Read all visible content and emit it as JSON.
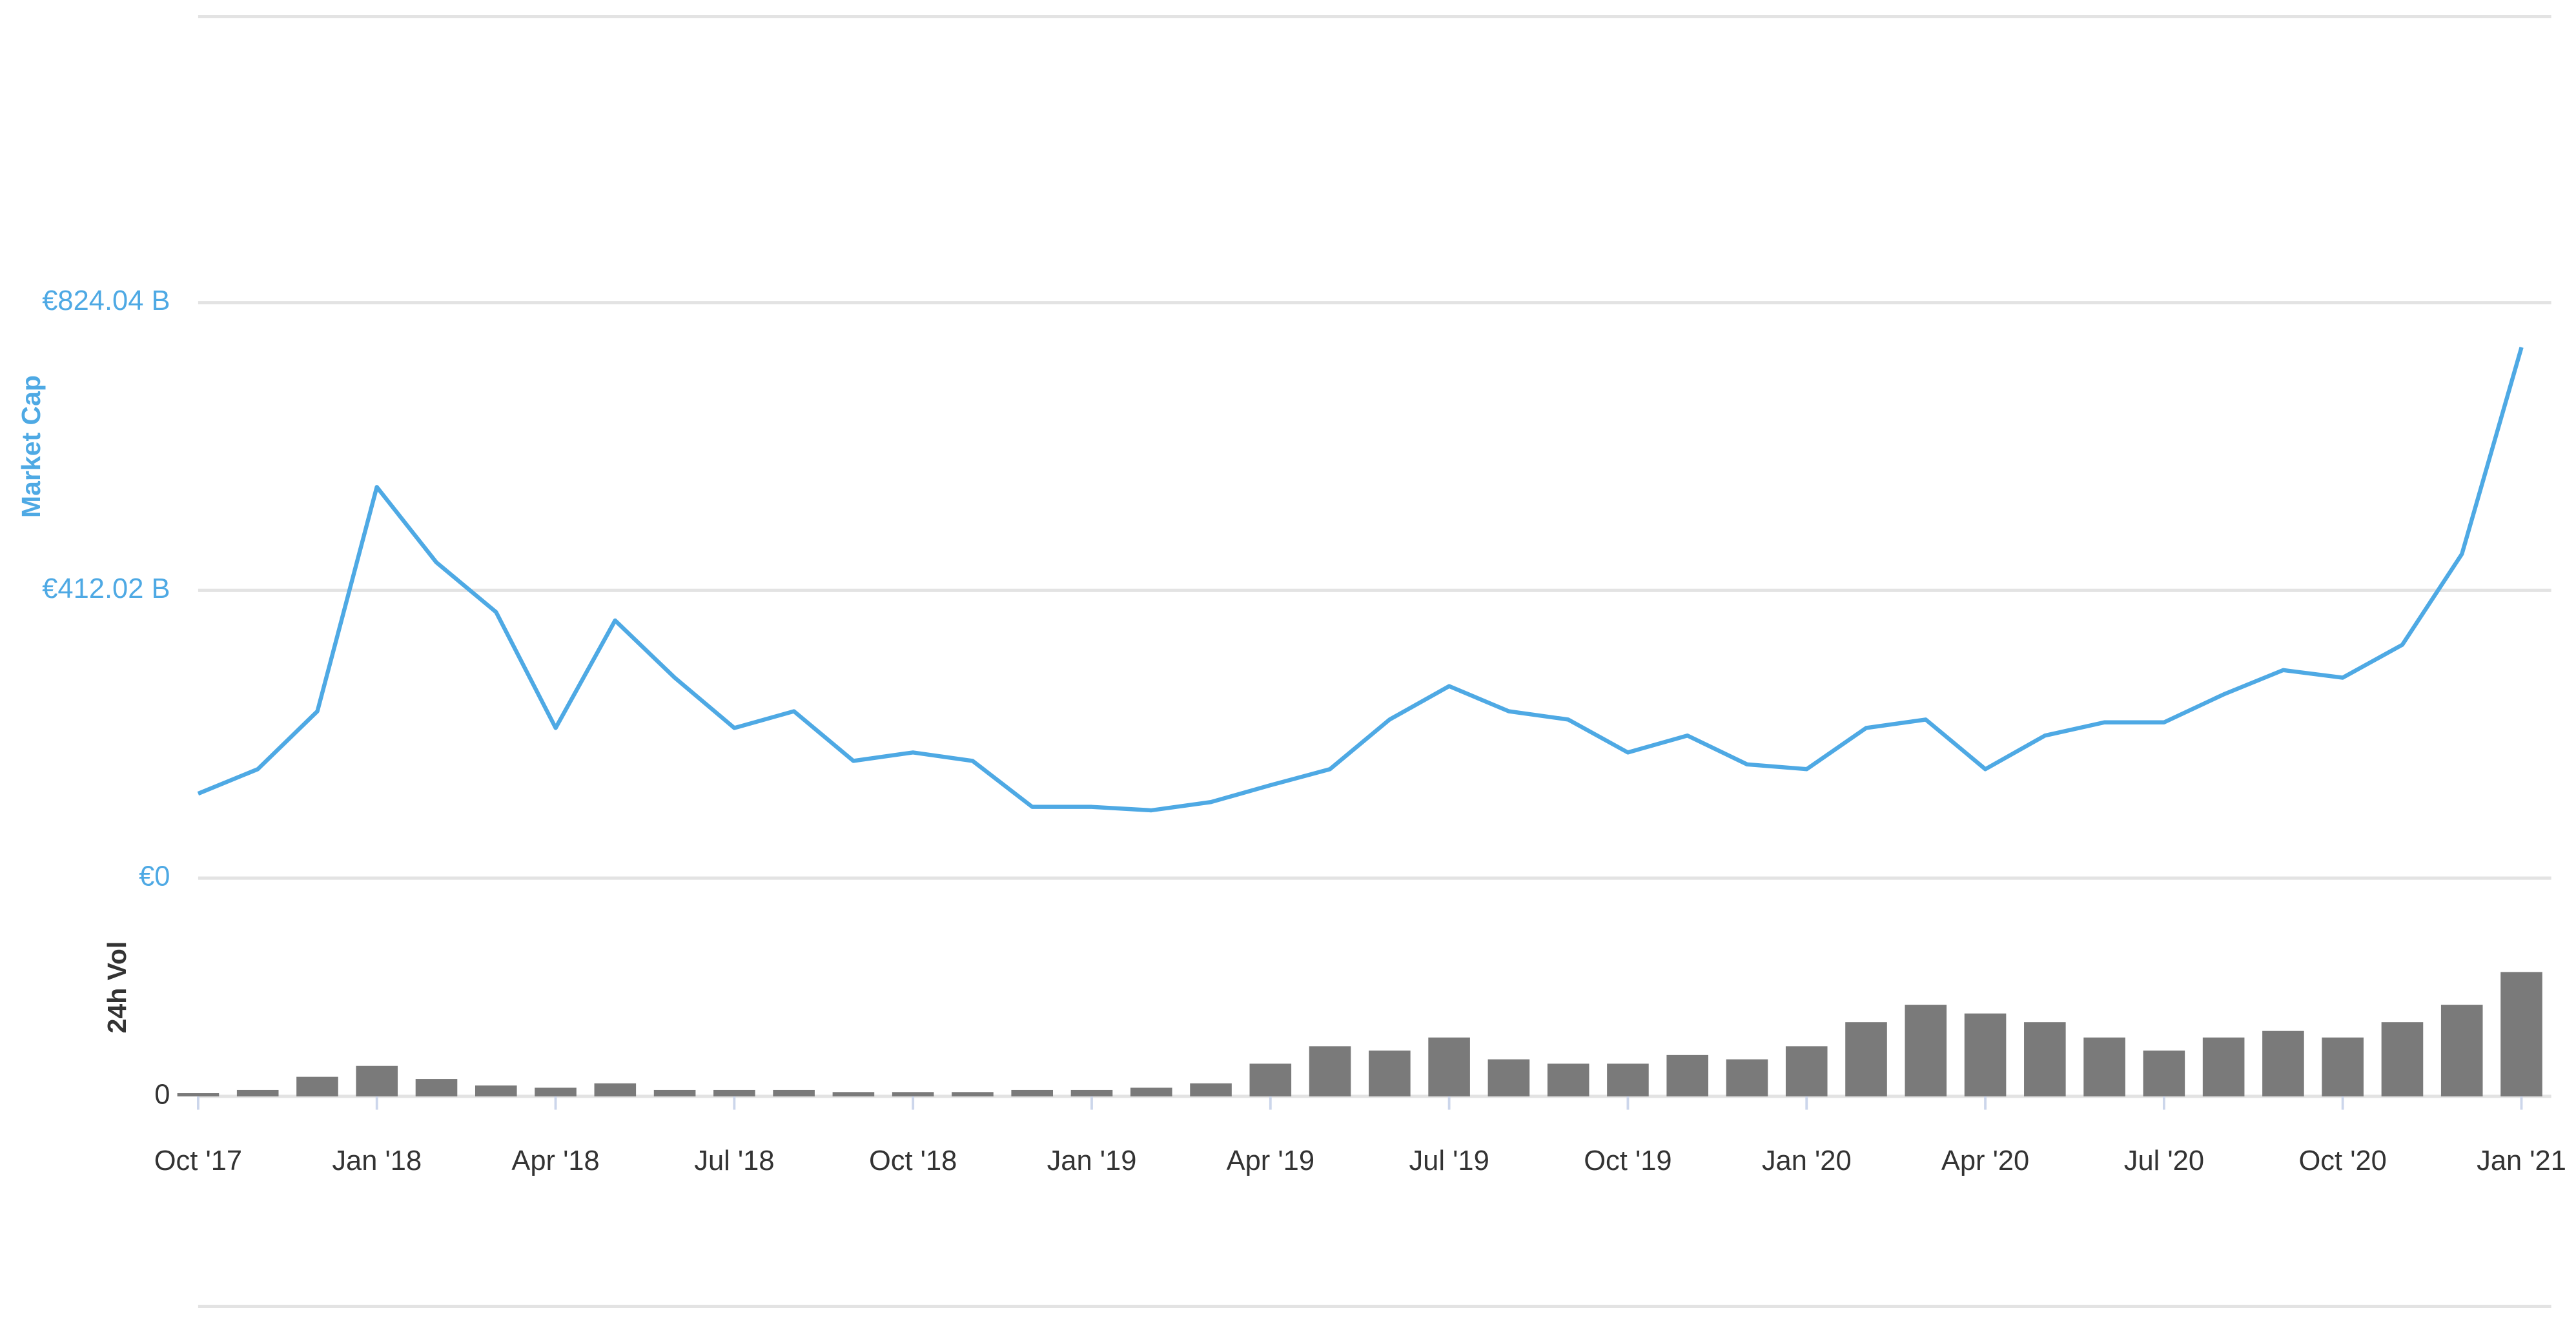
{
  "chart_data": [
    {
      "type": "line",
      "y_label": "Market Cap",
      "x": [
        "2017-10",
        "2017-11",
        "2017-12",
        "2018-01",
        "2018-02",
        "2018-03",
        "2018-04",
        "2018-05",
        "2018-06",
        "2018-07",
        "2018-08",
        "2018-09",
        "2018-10",
        "2018-11",
        "2018-12",
        "2019-01",
        "2019-02",
        "2019-03",
        "2019-04",
        "2019-05",
        "2019-06",
        "2019-07",
        "2019-08",
        "2019-09",
        "2019-10",
        "2019-11",
        "2019-12",
        "2020-01",
        "2020-02",
        "2020-03",
        "2020-04",
        "2020-05",
        "2020-06",
        "2020-07",
        "2020-08",
        "2020-09",
        "2020-10",
        "2020-11",
        "2020-12",
        "2021-01"
      ],
      "values": [
        121,
        156,
        239,
        560,
        452,
        381,
        215,
        369,
        287,
        215,
        239,
        168,
        180,
        168,
        102,
        102,
        97,
        109,
        133,
        156,
        227,
        275,
        239,
        227,
        180,
        204,
        163,
        156,
        215,
        227,
        156,
        204,
        223,
        223,
        263,
        298,
        287,
        334,
        464,
        760
      ],
      "color": "#4ea9e4",
      "ylim": [
        0,
        1236.06
      ],
      "yticks": [
        {
          "value": 0,
          "label": "€0"
        },
        {
          "value": 412.02,
          "label": "€412.02 B"
        },
        {
          "value": 824.04,
          "label": "€824.04 B"
        }
      ],
      "grid": true
    },
    {
      "type": "bar",
      "y_label": "24h Vol",
      "x": [
        "2017-10",
        "2017-11",
        "2017-12",
        "2018-01",
        "2018-02",
        "2018-03",
        "2018-04",
        "2018-05",
        "2018-06",
        "2018-07",
        "2018-08",
        "2018-09",
        "2018-10",
        "2018-11",
        "2018-12",
        "2019-01",
        "2019-02",
        "2019-03",
        "2019-04",
        "2019-05",
        "2019-06",
        "2019-07",
        "2019-08",
        "2019-09",
        "2019-10",
        "2019-11",
        "2019-12",
        "2020-01",
        "2020-02",
        "2020-03",
        "2020-04",
        "2020-05",
        "2020-06",
        "2020-07",
        "2020-08",
        "2020-09",
        "2020-10",
        "2020-11",
        "2020-12",
        "2021-01"
      ],
      "values": [
        1.5,
        3,
        9,
        14,
        8,
        5,
        4,
        6,
        3,
        3,
        3,
        2,
        2,
        2,
        3,
        3,
        4,
        6,
        15,
        23,
        21,
        27,
        17,
        15,
        15,
        19,
        17,
        23,
        34,
        42,
        38,
        34,
        27,
        21,
        27,
        30,
        27,
        34,
        42,
        57
      ],
      "color": "#7a7a7a",
      "ylim": [
        0,
        100
      ],
      "yticks": [
        0
      ],
      "xticks": [
        {
          "value": "2017-10",
          "label": "Oct '17"
        },
        {
          "value": "2018-01",
          "label": "Jan '18"
        },
        {
          "value": "2018-04",
          "label": "Apr '18"
        },
        {
          "value": "2018-07",
          "label": "Jul '18"
        },
        {
          "value": "2018-10",
          "label": "Oct '18"
        },
        {
          "value": "2019-01",
          "label": "Jan '19"
        },
        {
          "value": "2019-04",
          "label": "Apr '19"
        },
        {
          "value": "2019-07",
          "label": "Jul '19"
        },
        {
          "value": "2019-10",
          "label": "Oct '19"
        },
        {
          "value": "2020-01",
          "label": "Jan '20"
        },
        {
          "value": "2020-04",
          "label": "Apr '20"
        },
        {
          "value": "2020-07",
          "label": "Jul '20"
        },
        {
          "value": "2020-10",
          "label": "Oct '20"
        },
        {
          "value": "2021-01",
          "label": "Jan '21"
        }
      ]
    }
  ]
}
